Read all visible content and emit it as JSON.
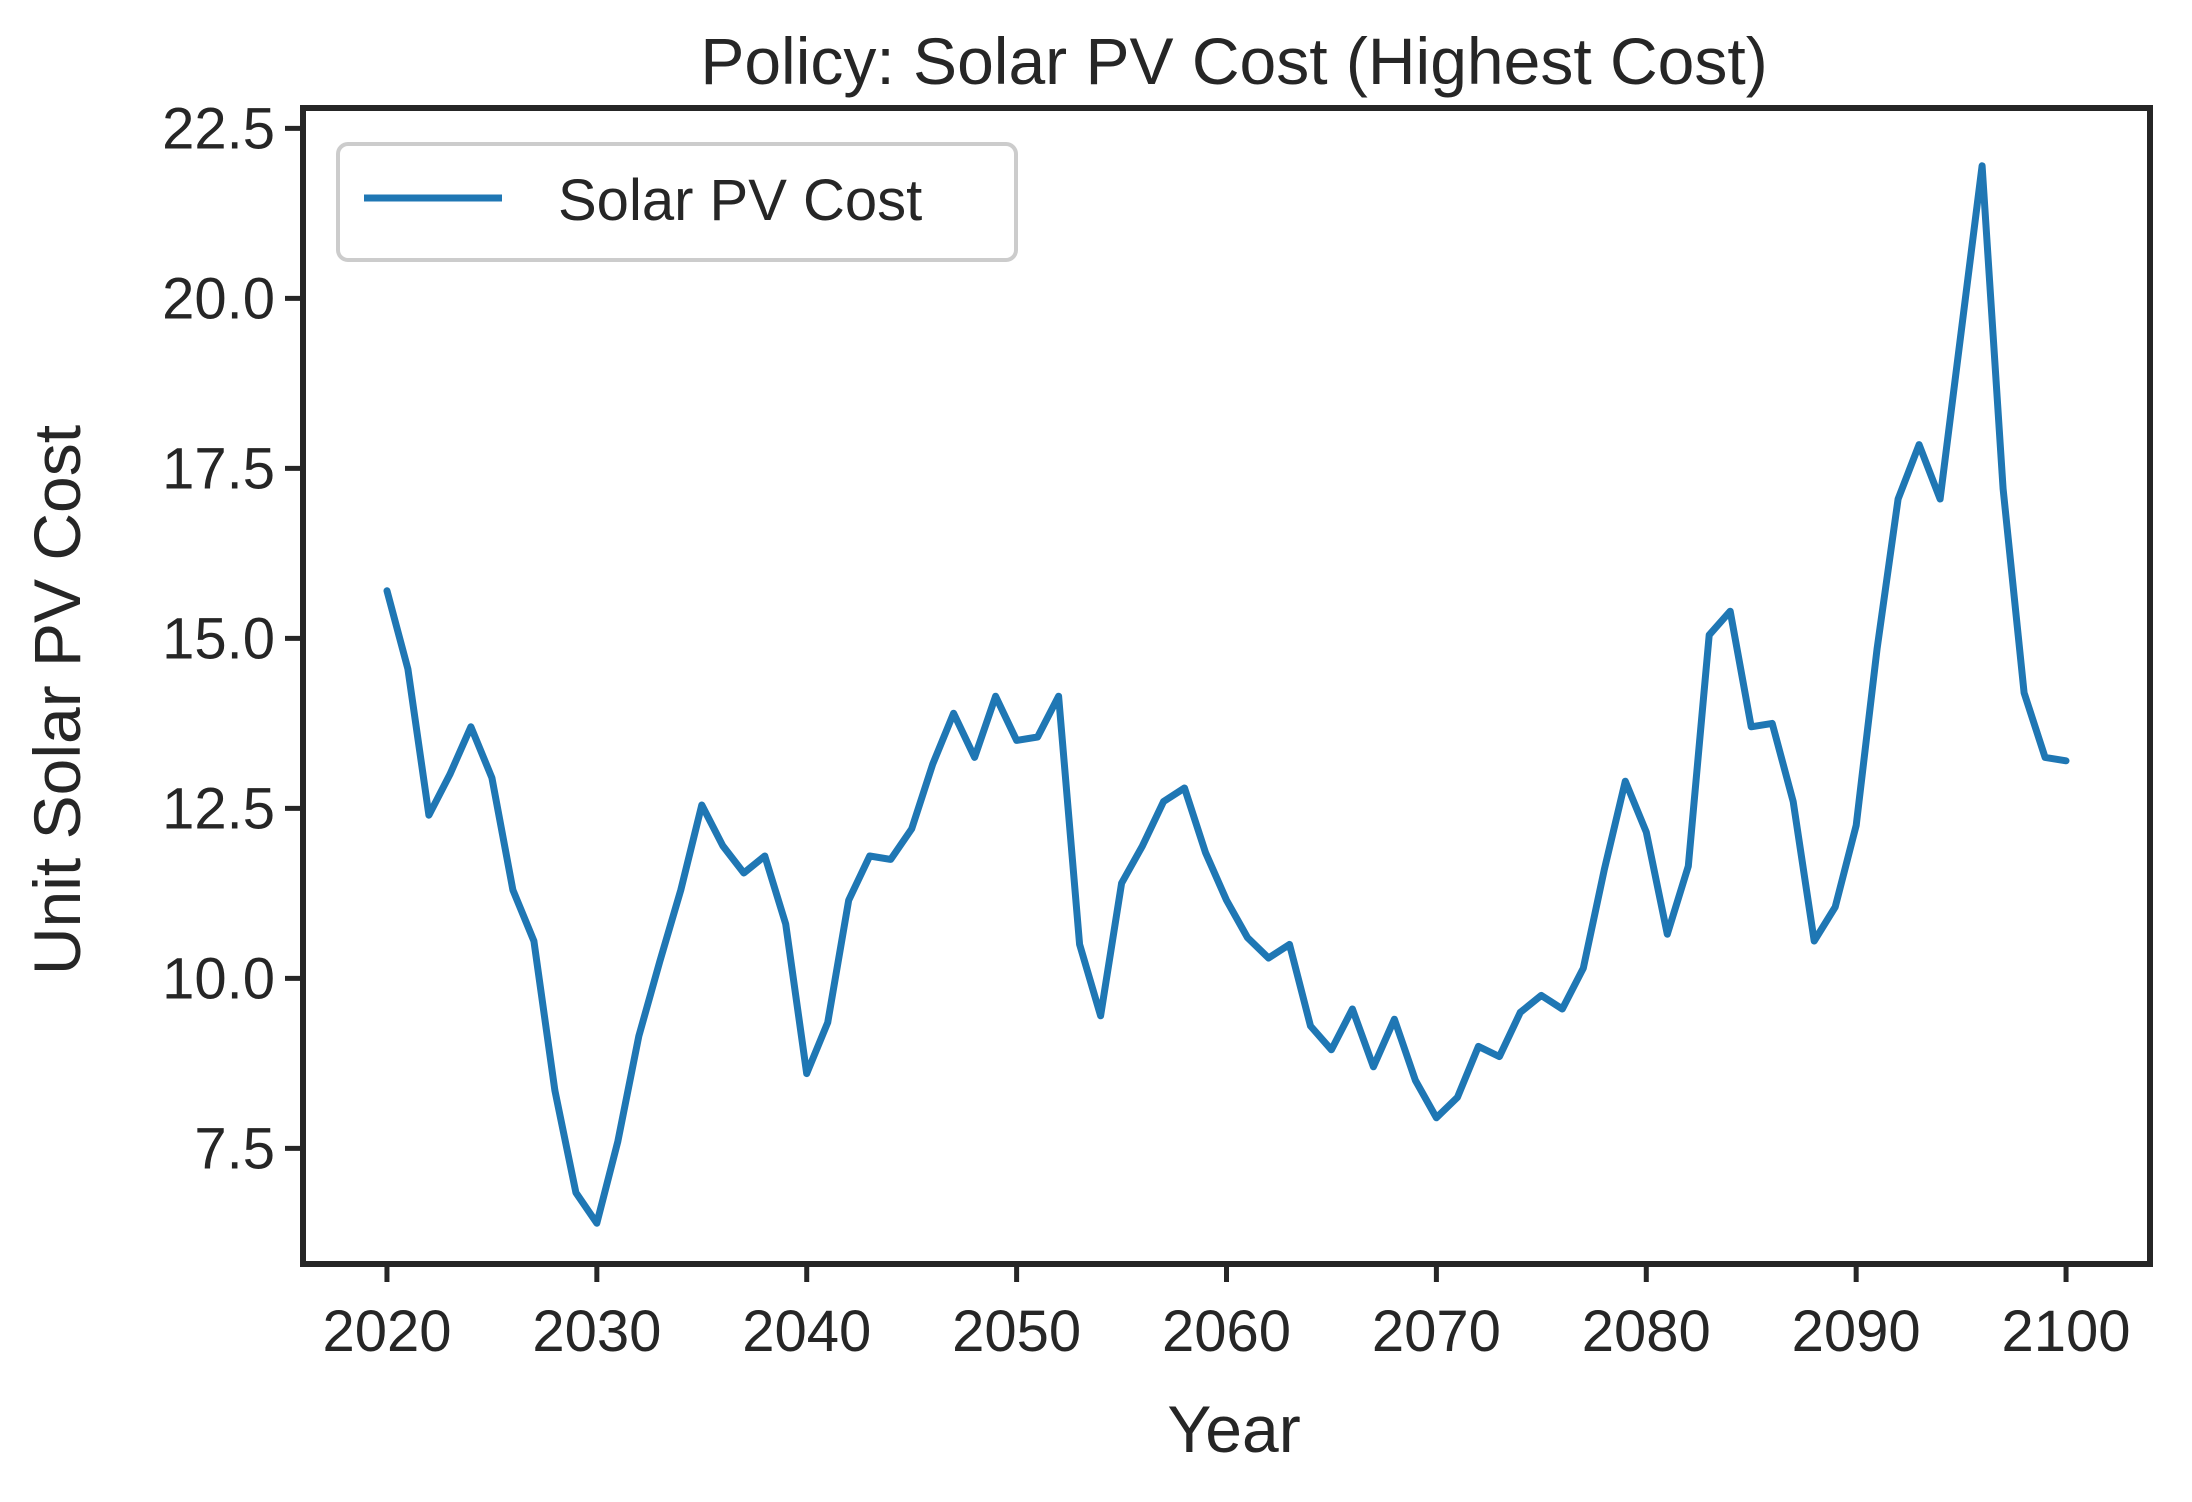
{
  "chart_data": {
    "type": "line",
    "title": "Policy: Solar PV Cost (Highest Cost)",
    "xlabel": "Year",
    "ylabel": "Unit Solar PV Cost",
    "xlim": [
      2016,
      2104
    ],
    "ylim": [
      5.8,
      22.8
    ],
    "xticks": [
      2020,
      2030,
      2040,
      2050,
      2060,
      2070,
      2080,
      2090,
      2100
    ],
    "yticks": [
      7.5,
      10.0,
      12.5,
      15.0,
      17.5,
      20.0,
      22.5
    ],
    "ytick_labels": [
      "7.5",
      "10.0",
      "12.5",
      "15.0",
      "17.5",
      "20.0",
      "22.5"
    ],
    "grid": false,
    "legend_position": "upper-left",
    "colors": {
      "series": "#1f77b4",
      "axes": "#262626",
      "legend_border": "#cccccc"
    },
    "x": [
      2020,
      2021,
      2022,
      2023,
      2024,
      2025,
      2026,
      2027,
      2028,
      2029,
      2030,
      2031,
      2032,
      2033,
      2034,
      2035,
      2036,
      2037,
      2038,
      2039,
      2040,
      2041,
      2042,
      2043,
      2044,
      2045,
      2046,
      2047,
      2048,
      2049,
      2050,
      2051,
      2052,
      2053,
      2054,
      2055,
      2056,
      2057,
      2058,
      2059,
      2060,
      2061,
      2062,
      2063,
      2064,
      2065,
      2066,
      2067,
      2068,
      2069,
      2070,
      2071,
      2072,
      2073,
      2074,
      2075,
      2076,
      2077,
      2078,
      2079,
      2080,
      2081,
      2082,
      2083,
      2084,
      2085,
      2086,
      2087,
      2088,
      2089,
      2090,
      2091,
      2092,
      2093,
      2094,
      2095,
      2096,
      2097,
      2098,
      2099,
      2100
    ],
    "series": [
      {
        "name": "Solar PV Cost",
        "values": [
          15.7,
          14.55,
          12.4,
          13.0,
          13.7,
          12.95,
          11.3,
          10.55,
          8.35,
          6.85,
          6.4,
          7.6,
          9.15,
          10.25,
          11.3,
          12.55,
          11.95,
          11.55,
          11.8,
          10.8,
          8.6,
          9.35,
          11.15,
          11.8,
          11.75,
          12.2,
          13.15,
          13.9,
          13.25,
          14.15,
          13.5,
          13.55,
          14.15,
          10.5,
          9.45,
          11.4,
          11.95,
          12.6,
          12.8,
          11.85,
          11.15,
          10.6,
          10.3,
          10.5,
          9.3,
          8.95,
          9.55,
          8.7,
          9.4,
          8.5,
          7.95,
          8.25,
          9.0,
          8.85,
          9.5,
          9.75,
          9.55,
          10.15,
          11.6,
          12.9,
          12.15,
          10.65,
          11.65,
          15.05,
          15.4,
          13.7,
          13.75,
          12.6,
          10.55,
          11.05,
          12.25,
          14.85,
          17.05,
          17.85,
          17.05,
          19.5,
          21.95,
          17.2,
          14.2,
          13.25,
          13.2
        ]
      }
    ]
  }
}
